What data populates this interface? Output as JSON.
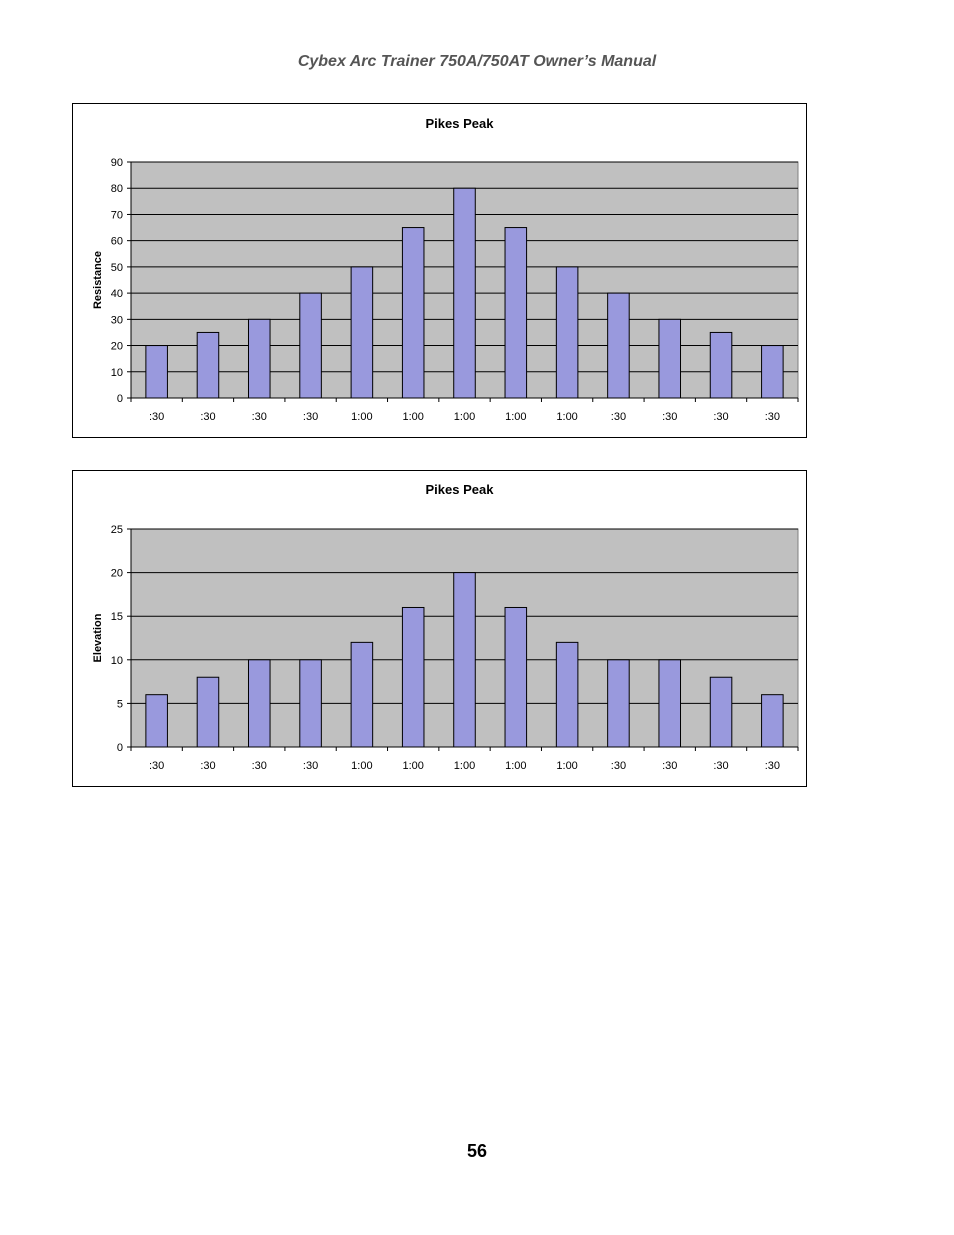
{
  "header": {
    "title": "Cybex Arc Trainer 750A/750AT Owner’s Manual"
  },
  "footer": {
    "page_number": "56"
  },
  "chart_data": [
    {
      "type": "bar",
      "title": "Pikes Peak",
      "xlabel": "",
      "ylabel": "Resistance",
      "categories": [
        ":30",
        ":30",
        ":30",
        ":30",
        "1:00",
        "1:00",
        "1:00",
        "1:00",
        "1:00",
        ":30",
        ":30",
        ":30",
        ":30"
      ],
      "values": [
        20,
        25,
        30,
        40,
        50,
        65,
        80,
        65,
        50,
        40,
        30,
        25,
        20
      ],
      "ylim": [
        0,
        90
      ],
      "yticks": [
        0,
        10,
        20,
        30,
        40,
        50,
        60,
        70,
        80,
        90
      ],
      "grid": true,
      "legend": "none",
      "colors": {
        "bar": "#9999dd",
        "plot_background": "#c0c0c0"
      }
    },
    {
      "type": "bar",
      "title": "Pikes Peak",
      "xlabel": "",
      "ylabel": "Elevation",
      "categories": [
        ":30",
        ":30",
        ":30",
        ":30",
        "1:00",
        "1:00",
        "1:00",
        "1:00",
        "1:00",
        ":30",
        ":30",
        ":30",
        ":30"
      ],
      "values": [
        6,
        8,
        10,
        10,
        12,
        16,
        20,
        16,
        12,
        10,
        10,
        8,
        6
      ],
      "ylim": [
        0,
        25
      ],
      "yticks": [
        0,
        5,
        10,
        15,
        20,
        25
      ],
      "grid": true,
      "legend": "none",
      "colors": {
        "bar": "#9999dd",
        "plot_background": "#c0c0c0"
      }
    }
  ]
}
